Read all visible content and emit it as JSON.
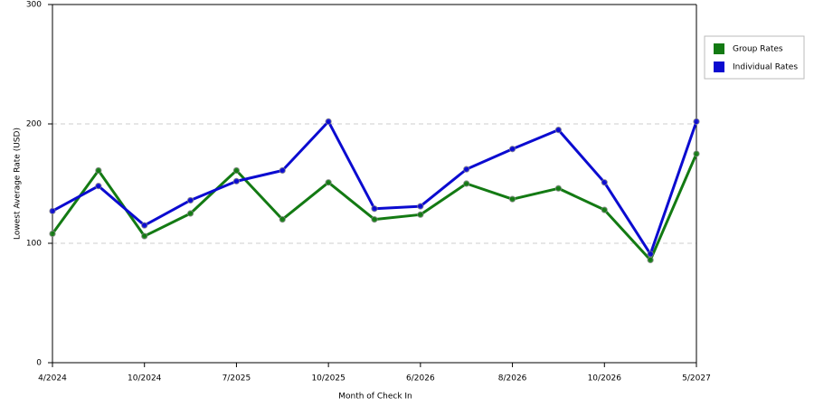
{
  "chart_data": {
    "type": "line",
    "x_label": "Month of Check In",
    "y_label": "Lowest Average Rate (USD)",
    "categories": [
      "4/2024",
      null,
      "10/2024",
      null,
      "7/2025",
      null,
      "10/2025",
      null,
      "6/2026",
      null,
      "8/2026",
      null,
      "10/2026",
      null,
      "5/2027"
    ],
    "series": [
      {
        "name": "Group Rates",
        "color": "#137a13",
        "values": [
          108,
          161,
          106,
          125,
          161,
          120,
          151,
          120,
          124,
          150,
          137,
          146,
          128,
          86,
          175
        ]
      },
      {
        "name": "Individual Rates",
        "color": "#0b0bd0",
        "values": [
          127,
          148,
          115,
          136,
          152,
          161,
          202,
          129,
          131,
          162,
          179,
          195,
          151,
          91,
          202
        ]
      }
    ],
    "ylim": [
      0,
      300
    ],
    "yticks": [
      0,
      100,
      200,
      300
    ],
    "grid": true,
    "legend": "right"
  }
}
